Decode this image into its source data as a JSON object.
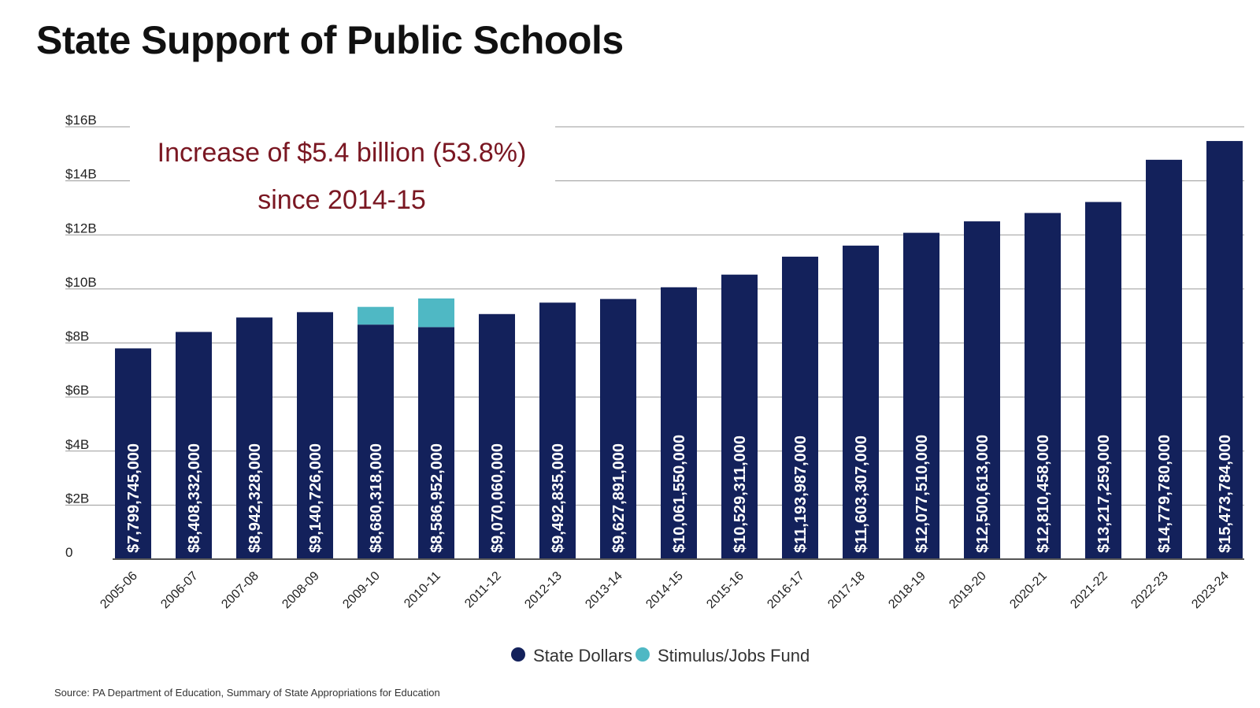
{
  "chart_data": {
    "type": "bar",
    "stacked": true,
    "title": "State Support of Public Schools",
    "annotation": {
      "line1": "Increase of $5.4 billion (53.8%)",
      "line2": "since 2014-15",
      "color": "#7a1722"
    },
    "categories": [
      "2005-06",
      "2006-07",
      "2007-08",
      "2008-09",
      "2009-10",
      "2010-11",
      "2011-12",
      "2012-13",
      "2013-14",
      "2014-15",
      "2015-16",
      "2016-17",
      "2017-18",
      "2018-19",
      "2019-20",
      "2020-21",
      "2021-22",
      "2022-23",
      "2023-24"
    ],
    "series": [
      {
        "name": "State Dollars",
        "color": "#13215b",
        "values": [
          7799745000,
          8408332000,
          8942328000,
          9140726000,
          8680318000,
          8586952000,
          9070060000,
          9492835000,
          9627891000,
          10061550000,
          10529311000,
          11193987000,
          11603307000,
          12077510000,
          12500613000,
          12810458000,
          13217259000,
          14779780000,
          15473784000
        ],
        "labels": [
          "$7,799,745,000",
          "$8,408,332,000",
          "$8,942,328,000",
          "$9,140,726,000",
          "$8,680,318,000",
          "$8,586,952,000",
          "$9,070,060,000",
          "$9,492,835,000",
          "$9,627,891,000",
          "$10,061,550,000",
          "$10,529,311,000",
          "$11,193,987,000",
          "$11,603,307,000",
          "$12,077,510,000",
          "$12,500,613,000",
          "$12,810,458,000",
          "$13,217,259,000",
          "$14,779,780,000",
          "$15,473,784,000"
        ]
      },
      {
        "name": "Stimulus/Jobs Fund",
        "color": "#4fb8c4",
        "values": [
          0,
          0,
          0,
          0,
          655000000,
          1060000000,
          0,
          0,
          0,
          0,
          0,
          0,
          0,
          0,
          0,
          0,
          0,
          0,
          0
        ]
      }
    ],
    "yaxis": {
      "min": 0,
      "max": 16000000000,
      "ticks": [
        0,
        2000000000,
        4000000000,
        6000000000,
        8000000000,
        10000000000,
        12000000000,
        14000000000,
        16000000000
      ],
      "tick_labels": [
        "0",
        "$2B",
        "$4B",
        "$6B",
        "$8B",
        "$10B",
        "$12B",
        "$14B",
        "$16B"
      ]
    },
    "grid": true,
    "legend_position": "bottom-center",
    "xlabel": "",
    "ylabel": ""
  },
  "source_note": "Source: PA Department of Education, Summary of State Appropriations for Education",
  "colors": {
    "grid": "#9a9a9a",
    "axis": "#555555",
    "bar_label": "#ffffff"
  }
}
